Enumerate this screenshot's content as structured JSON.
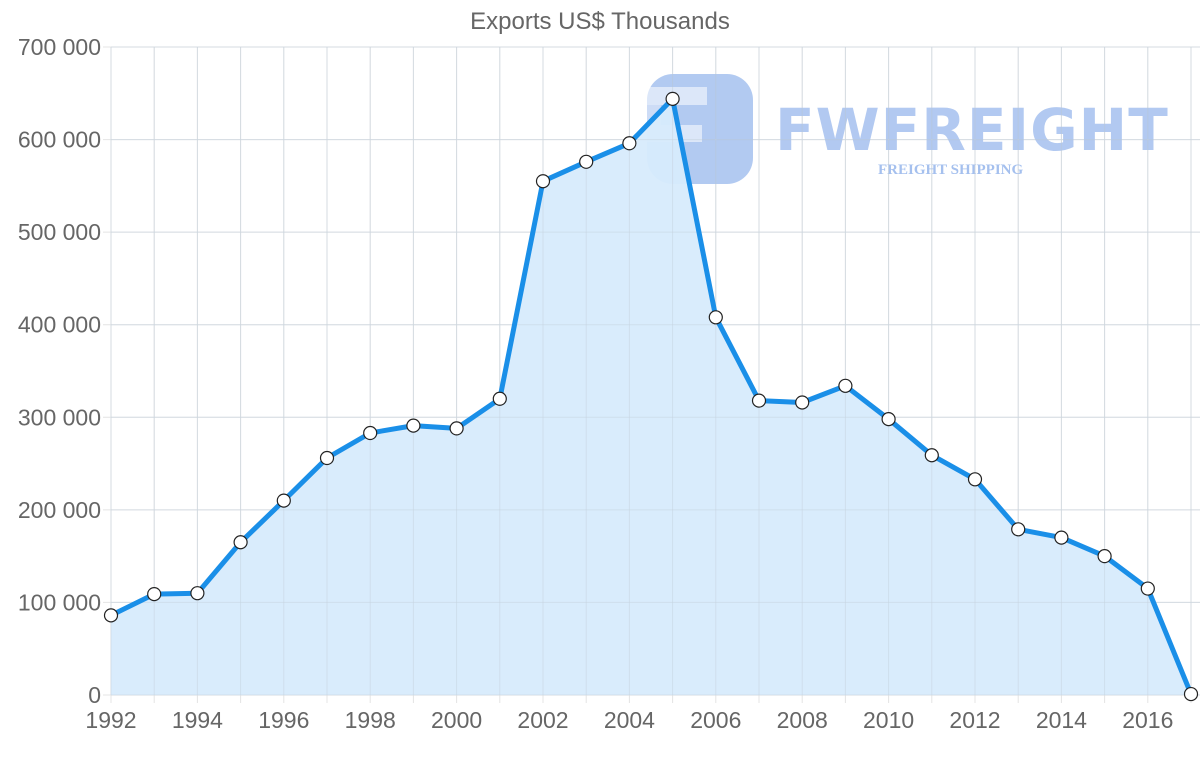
{
  "chart_data": {
    "type": "area",
    "title": "Exports US$ Thousands",
    "xlabel": "",
    "ylabel": "",
    "x": [
      1992,
      1993,
      1994,
      1995,
      1996,
      1997,
      1998,
      1999,
      2000,
      2001,
      2002,
      2003,
      2004,
      2005,
      2006,
      2007,
      2008,
      2009,
      2010,
      2011,
      2012,
      2013,
      2014,
      2015,
      2016,
      2017
    ],
    "series": [
      {
        "name": "Exports US$ Thousands",
        "values": [
          86000,
          109000,
          110000,
          165000,
          210000,
          256000,
          283000,
          291000,
          288000,
          320000,
          555000,
          576000,
          596000,
          644000,
          408000,
          318000,
          316000,
          334000,
          298000,
          259000,
          233000,
          179000,
          170000,
          150000,
          115000,
          1000
        ],
        "color": "#1a8fe8",
        "fill": "#d7ebfc"
      }
    ],
    "ylim": [
      0,
      700000
    ],
    "y_ticks": [
      "0",
      "100 000",
      "200 000",
      "300 000",
      "400 000",
      "500 000",
      "600 000",
      "700 000"
    ],
    "x_ticks": [
      "1992",
      "1994",
      "1996",
      "1998",
      "2000",
      "2002",
      "2004",
      "2006",
      "2008",
      "2010",
      "2012",
      "2014",
      "2016"
    ],
    "grid": true,
    "legend": "none"
  },
  "watermark": {
    "brand": "FWFREIGHT",
    "tagline": "FREIGHT SHIPPING"
  }
}
